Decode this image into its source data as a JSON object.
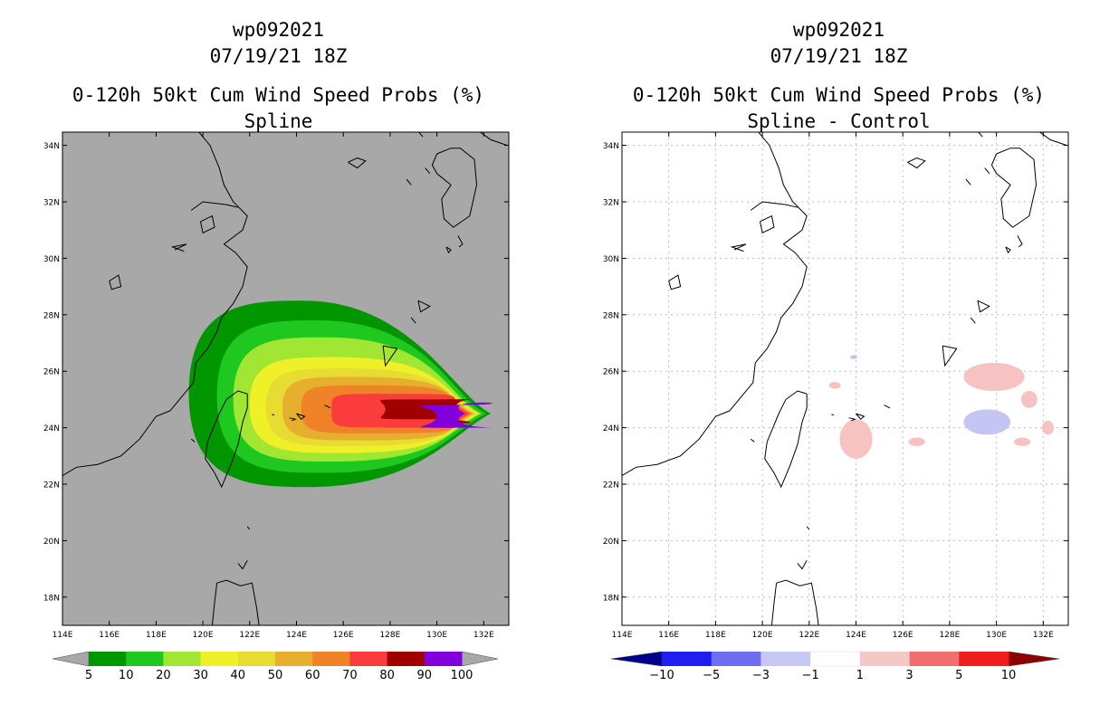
{
  "chart_data": [
    {
      "type": "heatmap",
      "storm_id": "wp092021",
      "datetime": "07/19/21 18Z",
      "title": "0-120h 50kt Cum Wind Speed Probs (%)",
      "subtitle": "Spline",
      "x_ticks": [
        "114E",
        "116E",
        "118E",
        "120E",
        "122E",
        "124E",
        "126E",
        "128E",
        "130E",
        "132E"
      ],
      "y_ticks": [
        "18N",
        "20N",
        "22N",
        "24N",
        "26N",
        "28N",
        "30N",
        "32N",
        "34N"
      ],
      "xlim": [
        114,
        133
      ],
      "ylim": [
        17,
        34.5
      ],
      "grid": false,
      "background": "#a8a8a8",
      "colorbar": {
        "labels": [
          "5",
          "10",
          "20",
          "30",
          "40",
          "50",
          "60",
          "70",
          "80",
          "90",
          "100"
        ],
        "colors": [
          "#009600",
          "#1ec81e",
          "#a0e632",
          "#f0f028",
          "#e6dc32",
          "#e6af2d",
          "#f08228",
          "#fa3c3c",
          "#a00000",
          "#8200dc"
        ],
        "low_arrow": "#a8a8a8",
        "high_arrow": "#a8a8a8"
      },
      "probability_ellipses": [
        {
          "level": 5,
          "lon_min": 119.4,
          "lon_max": 132.3,
          "lat_min": 21.9,
          "lat_max": 28.5
        },
        {
          "level": 10,
          "lon_min": 120.6,
          "lon_max": 132.1,
          "lat_min": 22.4,
          "lat_max": 27.8
        },
        {
          "level": 20,
          "lon_min": 121.3,
          "lon_max": 131.9,
          "lat_min": 22.8,
          "lat_max": 27.2
        },
        {
          "level": 30,
          "lon_min": 122.0,
          "lon_max": 131.8,
          "lat_min": 23.1,
          "lat_max": 26.5
        },
        {
          "level": 40,
          "lon_min": 122.7,
          "lon_max": 131.7,
          "lat_min": 23.35,
          "lat_max": 26.1
        },
        {
          "level": 50,
          "lon_min": 123.4,
          "lon_max": 131.6,
          "lat_min": 23.55,
          "lat_max": 25.8
        },
        {
          "level": 60,
          "lon_min": 124.2,
          "lon_max": 131.5,
          "lat_min": 23.8,
          "lat_max": 25.5
        },
        {
          "level": 70,
          "lon_min": 125.5,
          "lon_max": 131.4,
          "lat_min": 24.0,
          "lat_max": 25.2
        },
        {
          "level": 80,
          "lon_min": 127.8,
          "lon_max": 131.2,
          "lat_min": 24.3,
          "lat_max": 25.0
        },
        {
          "level": 90,
          "lon_min": 130.0,
          "lon_max": 131.2,
          "lat_min": 24.0,
          "lat_max": 24.8
        }
      ]
    },
    {
      "type": "heatmap",
      "storm_id": "wp092021",
      "datetime": "07/19/21 18Z",
      "title": "0-120h 50kt Cum Wind Speed Probs (%)",
      "subtitle": "Spline - Control",
      "x_ticks": [
        "114E",
        "116E",
        "118E",
        "120E",
        "122E",
        "124E",
        "126E",
        "128E",
        "130E",
        "132E"
      ],
      "y_ticks": [
        "18N",
        "20N",
        "22N",
        "24N",
        "26N",
        "28N",
        "30N",
        "32N",
        "34N"
      ],
      "xlim": [
        114,
        133
      ],
      "ylim": [
        17,
        34.5
      ],
      "grid": true,
      "background": "#ffffff",
      "colorbar": {
        "labels": [
          "-10",
          "-5",
          "-3",
          "-1",
          "1",
          "3",
          "5",
          "10"
        ],
        "colors": [
          "#1e1ef0",
          "#6e6ef0",
          "#c8c8f5",
          "#ffffff",
          "#f5c8c8",
          "#f06e6e",
          "#f01e1e"
        ],
        "low_arrow": "#00008c",
        "high_arrow": "#8c0000"
      },
      "difference_blobs": [
        {
          "value": 1,
          "lon": 129.9,
          "lat": 25.8,
          "rlon": 1.3,
          "rlat": 0.5
        },
        {
          "value": 1,
          "lon": 124.0,
          "lat": 23.6,
          "rlon": 0.7,
          "rlat": 0.7
        },
        {
          "value": -1,
          "lon": 129.6,
          "lat": 24.2,
          "rlon": 1.0,
          "rlat": 0.45
        },
        {
          "value": 1,
          "lon": 131.4,
          "lat": 25.0,
          "rlon": 0.35,
          "rlat": 0.3
        },
        {
          "value": 1,
          "lon": 132.2,
          "lat": 24.0,
          "rlon": 0.25,
          "rlat": 0.25
        },
        {
          "value": 1,
          "lon": 131.1,
          "lat": 23.5,
          "rlon": 0.35,
          "rlat": 0.15
        },
        {
          "value": 1,
          "lon": 126.6,
          "lat": 23.5,
          "rlon": 0.35,
          "rlat": 0.15
        },
        {
          "value": 1,
          "lon": 123.1,
          "lat": 25.5,
          "rlon": 0.25,
          "rlat": 0.12
        },
        {
          "value": -1,
          "lon": 123.9,
          "lat": 26.5,
          "rlon": 0.15,
          "rlat": 0.07
        }
      ]
    }
  ]
}
